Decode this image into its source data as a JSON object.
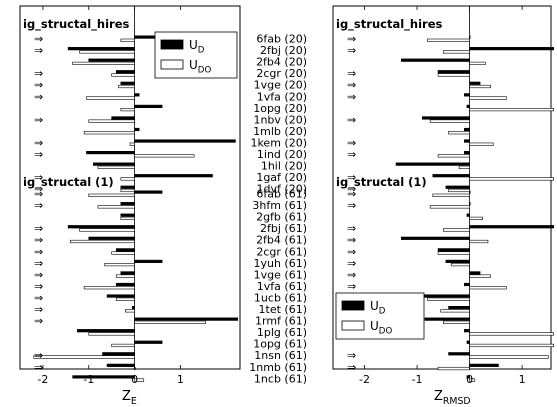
{
  "chart_data": {
    "type": "bar",
    "orientation": "horizontal",
    "groups": [
      {
        "title": "ig_structal_hires",
        "labels": [
          "6fab (20)",
          "2fbj (20)",
          "2fb4 (20)",
          "2cgr (20)",
          "1vge (20)",
          "1vfa (20)",
          "1opg (20)",
          "1nbv (20)",
          "1mlb (20)",
          "1kem (20)",
          "1ind (20)",
          "1hil (20)",
          "1gaf (20)",
          "1dvf (20)"
        ],
        "arrow": [
          1,
          1,
          0,
          1,
          1,
          1,
          0,
          1,
          0,
          1,
          1,
          0,
          1,
          1
        ]
      },
      {
        "title": "ig_structal (1)",
        "labels": [
          "6fab (61)",
          "3hfm (61)",
          "2gfb (61)",
          "2fbj (61)",
          "2fb4 (61)",
          "2cgr (61)",
          "1yuh (61)",
          "1vge (61)",
          "1vfa (61)",
          "1ucb (61)",
          "1tet (61)",
          "1rmf (61)",
          "1plg (61)",
          "1opg (61)",
          "1nsn (61)",
          "1nmb (61)",
          "1ncb (61)"
        ],
        "arrow": [
          1,
          1,
          0,
          1,
          1,
          1,
          1,
          1,
          1,
          1,
          1,
          1,
          0,
          0,
          1,
          1,
          0
        ]
      }
    ],
    "panels": [
      {
        "xlabel_main": "Z",
        "xlabel_sub": "E",
        "xlim": [
          -2.5,
          2.3
        ],
        "xticks": [
          -2,
          -1,
          0,
          1
        ],
        "legend": {
          "position": "top-right",
          "items": [
            {
              "main": "U",
              "sub": "D"
            },
            {
              "main": "U",
              "sub": "DO"
            }
          ]
        },
        "series": [
          {
            "name": "UD",
            "color": "#000000",
            "hires": [
              0.6,
              -1.45,
              -1.0,
              -0.4,
              -0.3,
              0.1,
              0.6,
              -0.5,
              0.1,
              2.2,
              -1.05,
              -0.9,
              1.7,
              -0.3
            ],
            "s1": [
              0.6,
              -0.3,
              -0.3,
              -1.45,
              -1.0,
              -0.4,
              0.6,
              -0.3,
              -0.4,
              -0.6,
              -0.05,
              2.25,
              -1.25,
              0.6,
              -0.7,
              -0.6,
              -1.35
            ]
          },
          {
            "name": "UDO",
            "color": "#ffffff",
            "hires": [
              -0.3,
              -1.2,
              -1.35,
              -0.5,
              -0.35,
              -1.05,
              -0.3,
              -1.0,
              -1.1,
              -0.1,
              1.3,
              -0.8,
              -0.3,
              -0.3
            ],
            "s1": [
              -1.0,
              -0.8,
              -0.3,
              -1.2,
              -1.4,
              -0.5,
              -0.65,
              -0.4,
              -1.1,
              -0.4,
              -0.2,
              1.55,
              -1.0,
              -0.5,
              -2.2,
              0.0,
              0.2
            ]
          }
        ]
      },
      {
        "xlabel_main": "Z",
        "xlabel_sub": "RMSD",
        "xlim": [
          -2.6,
          1.55
        ],
        "xticks": [
          -2,
          -1,
          0,
          1
        ],
        "legend": {
          "position": "bottom-left",
          "items": [
            {
              "main": "U",
              "sub": "D"
            },
            {
              "main": "U",
              "sub": "DO"
            }
          ]
        },
        "series": [
          {
            "name": "UD",
            "color": "#000000",
            "hires": [
              0.0,
              1.6,
              -1.3,
              -0.6,
              0.2,
              -0.1,
              -0.05,
              -0.9,
              -0.1,
              -0.1,
              -0.1,
              -1.4,
              -0.7,
              -0.45
            ],
            "s1": [
              0.0,
              0.0,
              -0.05,
              1.6,
              -1.3,
              -0.6,
              -0.45,
              0.2,
              -0.1,
              -0.9,
              -0.4,
              -0.85,
              -0.1,
              -0.05,
              -0.4,
              0.55,
              -0.05
            ]
          },
          {
            "name": "UDO",
            "color": "#ffffff",
            "hires": [
              -0.8,
              -0.5,
              0.3,
              -0.6,
              0.4,
              0.7,
              1.6,
              -0.75,
              -0.4,
              0.45,
              -0.6,
              -0.2,
              1.6,
              -0.4
            ],
            "s1": [
              -0.7,
              -0.75,
              0.25,
              -0.5,
              0.35,
              -0.6,
              -0.35,
              0.4,
              0.7,
              -0.8,
              -0.55,
              -0.5,
              1.6,
              1.6,
              1.5,
              -0.6,
              0.1
            ]
          }
        ]
      }
    ],
    "arrow_glyph": "⇒"
  }
}
